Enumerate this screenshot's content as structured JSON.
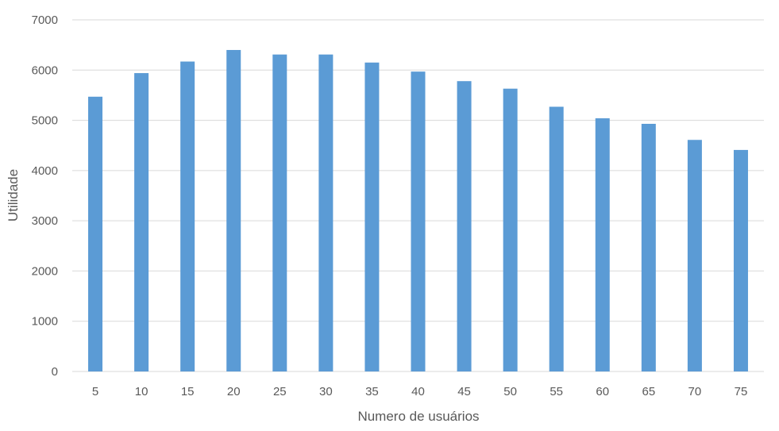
{
  "chart_data": {
    "type": "bar",
    "title": "",
    "xlabel": "Numero de usuários",
    "ylabel": "Utilidade",
    "categories": [
      "5",
      "10",
      "15",
      "20",
      "25",
      "30",
      "35",
      "40",
      "45",
      "50",
      "55",
      "60",
      "65",
      "70",
      "75"
    ],
    "values": [
      5470,
      5940,
      6170,
      6400,
      6310,
      6310,
      6150,
      5970,
      5780,
      5630,
      5270,
      5040,
      4930,
      4610,
      4410
    ],
    "ylim": [
      0,
      7000
    ],
    "yticks": [
      "0",
      "1000",
      "2000",
      "3000",
      "4000",
      "5000",
      "6000",
      "7000"
    ],
    "grid": true,
    "legend": "none",
    "bar_color": "#5b9bd5"
  }
}
